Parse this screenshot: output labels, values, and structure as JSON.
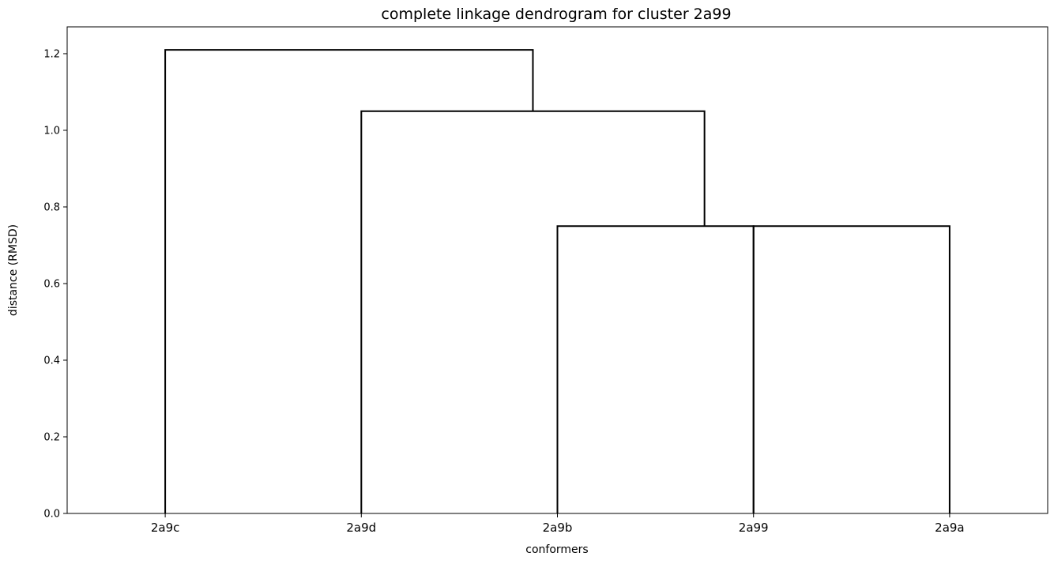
{
  "chart_data": {
    "type": "dendrogram",
    "title": "complete linkage dendrogram for cluster 2a99",
    "xlabel": "conformers",
    "ylabel": "distance (RMSD)",
    "leaves": [
      "2a9c",
      "2a9d",
      "2a9b",
      "2a99",
      "2a9a"
    ],
    "ylim": [
      0,
      1.27
    ],
    "yticks": [
      0.0,
      0.2,
      0.4,
      0.6,
      0.8,
      1.0,
      1.2
    ],
    "ytick_labels": [
      "0.0",
      "0.2",
      "0.4",
      "0.6",
      "0.8",
      "1.0",
      "1.2"
    ],
    "merges": [
      {
        "left": "2a9b",
        "right": "2a99",
        "height": 0.75
      },
      {
        "left": "2a99",
        "right": "2a9a",
        "height": 0.75
      },
      {
        "left": "2a9d",
        "right": "(2a9b, 2a99, 2a9a)",
        "height": 1.05
      },
      {
        "left": "2a9c",
        "right": "(2a9d, 2a9b, 2a99, 2a9a)",
        "height": 1.21
      }
    ],
    "line_color": "#000000",
    "grid": false
  }
}
